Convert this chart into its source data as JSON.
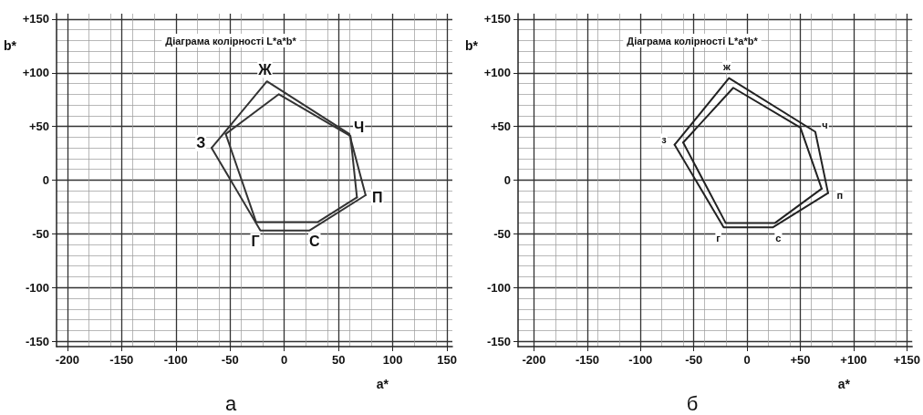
{
  "chart_data": [
    {
      "type": "line",
      "title": "Діаграма колірності L*a*b*",
      "subtitle": "а",
      "xlabel": "a*",
      "ylabel": "b*",
      "xlim": [
        -210,
        155
      ],
      "ylim": [
        -155,
        155
      ],
      "xticks": [
        -200,
        -150,
        -100,
        -50,
        0,
        50,
        100,
        150
      ],
      "yticks": [
        {
          "value": -150,
          "label": "-150"
        },
        {
          "value": -100,
          "label": "-100"
        },
        {
          "value": -50,
          "label": "-50"
        },
        {
          "value": 0,
          "label": "0"
        },
        {
          "value": 50,
          "label": "+50"
        },
        {
          "value": 100,
          "label": "+100"
        },
        {
          "value": 150,
          "label": "+150"
        }
      ],
      "grid": true,
      "marker": "none",
      "line_style": "solid",
      "series": [
        {
          "color": "#333333",
          "x": [
            -67,
            -16,
            60,
            75
          ],
          "values": [
            30,
            92,
            43,
            -14
          ]
        },
        {
          "color": "#333333",
          "x": [
            -67,
            -22,
            23,
            75
          ],
          "values": [
            30,
            -47,
            -47,
            -14
          ]
        },
        {
          "color": "#333333",
          "x": [
            -54,
            -5,
            61,
            67
          ],
          "values": [
            43,
            80,
            41,
            -16
          ]
        },
        {
          "color": "#333333",
          "x": [
            -54,
            -26,
            31,
            67
          ],
          "values": [
            43,
            -39,
            -39,
            -16
          ]
        }
      ],
      "annotations": [
        {
          "text": "Ж",
          "x": -16,
          "y": 92
        },
        {
          "text": "Ч",
          "x": 60,
          "y": 43
        },
        {
          "text": "П",
          "x": 75,
          "y": -14
        },
        {
          "text": "С",
          "x": 23,
          "y": -47
        },
        {
          "text": "Г",
          "x": -22,
          "y": -47
        },
        {
          "text": "З",
          "x": -67,
          "y": 30
        }
      ]
    },
    {
      "type": "line",
      "title": "Діаграма колірності L*a*b*",
      "subtitle": "б",
      "xlabel": "a*",
      "ylabel": "b*",
      "xlim": [
        -215,
        155
      ],
      "ylim": [
        -155,
        155
      ],
      "xticks": [
        {
          "value": -200,
          "label": "-200"
        },
        {
          "value": -150,
          "label": "-150"
        },
        {
          "value": -100,
          "label": "-100"
        },
        {
          "value": -50,
          "label": "-50"
        },
        {
          "value": 0,
          "label": "0"
        },
        {
          "value": 50,
          "label": "+50"
        },
        {
          "value": 100,
          "label": "+100"
        },
        {
          "value": 150,
          "label": "+150"
        }
      ],
      "yticks": [
        {
          "value": -150,
          "label": "-150"
        },
        {
          "value": -100,
          "label": "-100"
        },
        {
          "value": -50,
          "label": "-50"
        },
        {
          "value": 0,
          "label": "0"
        },
        {
          "value": 50,
          "label": "+50"
        },
        {
          "value": 100,
          "label": "+100"
        },
        {
          "value": 150,
          "label": "+150"
        }
      ],
      "grid": true,
      "marker": "none",
      "line_style": "solid",
      "series": [
        {
          "color": "#222222",
          "x": [
            -68,
            -17,
            64,
            76
          ],
          "values": [
            33,
            95,
            45,
            -12
          ]
        },
        {
          "color": "#222222",
          "x": [
            -68,
            -22,
            24,
            76
          ],
          "values": [
            33,
            -44,
            -44,
            -12
          ]
        },
        {
          "color": "#222222",
          "x": [
            -60,
            -13,
            50,
            70
          ],
          "values": [
            35,
            86,
            49,
            -8
          ]
        },
        {
          "color": "#222222",
          "x": [
            -60,
            -20,
            26,
            70
          ],
          "values": [
            35,
            -40,
            -40,
            -8
          ]
        }
      ],
      "annotations": [
        {
          "text": "ж",
          "x": -17,
          "y": 95
        },
        {
          "text": "ч",
          "x": 64,
          "y": 45
        },
        {
          "text": "п",
          "x": 76,
          "y": -12
        },
        {
          "text": "с",
          "x": 24,
          "y": -44
        },
        {
          "text": "г",
          "x": -22,
          "y": -44
        },
        {
          "text": "з",
          "x": -68,
          "y": 33
        }
      ]
    }
  ]
}
